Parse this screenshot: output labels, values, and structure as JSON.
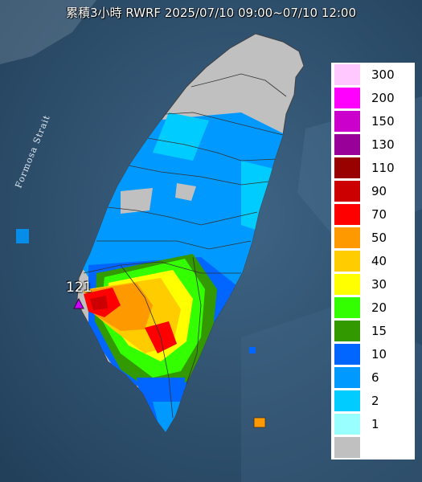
{
  "title": "累積3小時 RWRF 2025/07/10 09:00~07/10 12:00",
  "map_labels": {
    "strait": "Formosa Strait",
    "station_value": "121"
  },
  "legend": {
    "items": [
      {
        "label": "300",
        "color": "#ffc8ff"
      },
      {
        "label": "200",
        "color": "#ff00ff"
      },
      {
        "label": "150",
        "color": "#cc00cc"
      },
      {
        "label": "130",
        "color": "#990099"
      },
      {
        "label": "110",
        "color": "#990000"
      },
      {
        "label": "90",
        "color": "#cc0000"
      },
      {
        "label": "70",
        "color": "#ff0000"
      },
      {
        "label": "50",
        "color": "#ff9900"
      },
      {
        "label": "40",
        "color": "#ffcc00"
      },
      {
        "label": "30",
        "color": "#ffff00"
      },
      {
        "label": "20",
        "color": "#33ff00"
      },
      {
        "label": "15",
        "color": "#339900"
      },
      {
        "label": "10",
        "color": "#0066ff"
      },
      {
        "label": "6",
        "color": "#0099ff"
      },
      {
        "label": "2",
        "color": "#00ccff"
      },
      {
        "label": "1",
        "color": "#99ffff"
      },
      {
        "label": "",
        "color": "#c0c0c0"
      }
    ]
  },
  "colors": {
    "sea": "#2f4f6b",
    "no_rain": "#c0c0c0",
    "station_marker": "#cc00ff"
  }
}
